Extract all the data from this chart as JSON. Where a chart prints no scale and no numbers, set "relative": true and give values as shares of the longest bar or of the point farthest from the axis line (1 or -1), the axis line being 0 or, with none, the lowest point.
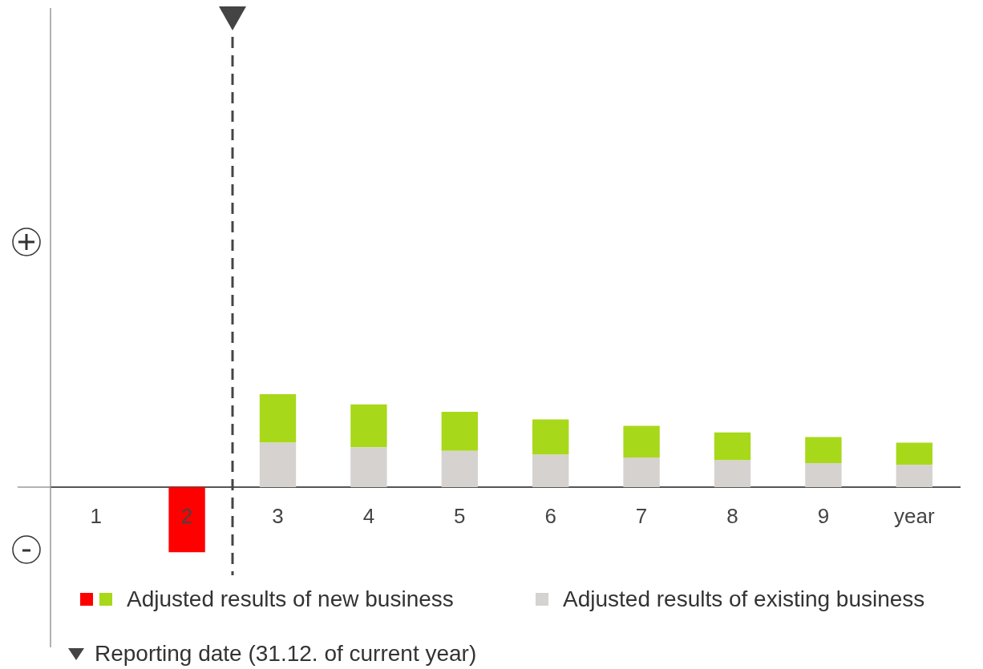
{
  "chart_data": {
    "type": "bar",
    "relative": true,
    "stacked": true,
    "legend": "bottom",
    "categories": [
      "1",
      "2",
      "3",
      "4",
      "5",
      "6",
      "7",
      "8",
      "9",
      "year"
    ],
    "series": [
      {
        "name": "Adjusted results of existing business",
        "color": "#d6d2cf",
        "values": [
          null,
          null,
          0.48,
          0.43,
          0.39,
          0.35,
          0.32,
          0.29,
          0.26,
          0.24
        ]
      },
      {
        "name": "Adjusted results of new business",
        "color": "#a8d81a",
        "colors": [
          "#a8d81a",
          "#ff0000",
          "#a8d81a",
          "#a8d81a",
          "#a8d81a",
          "#a8d81a",
          "#a8d81a",
          "#a8d81a",
          "#a8d81a",
          "#a8d81a"
        ],
        "values": [
          null,
          -0.7,
          0.52,
          0.46,
          0.42,
          0.38,
          0.34,
          0.3,
          0.28,
          0.24
        ]
      }
    ],
    "annotations": [
      "Reporting date (31.12. of current year)"
    ]
  }
}
